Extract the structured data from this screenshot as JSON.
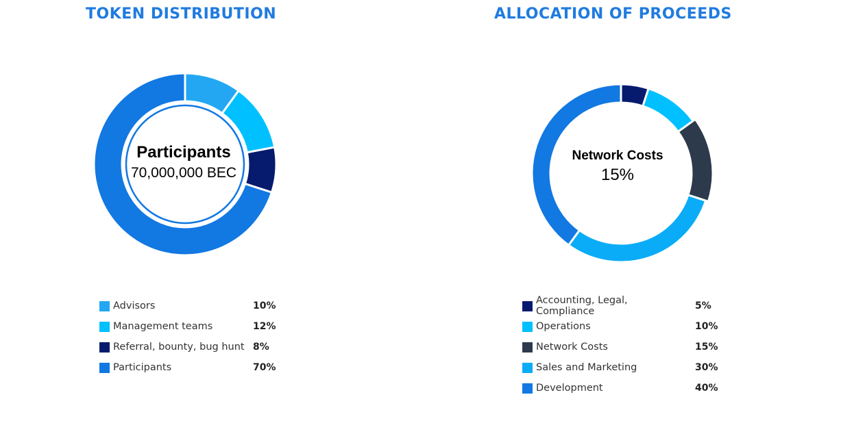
{
  "chart_data": [
    {
      "type": "pie",
      "title": "TOKEN DISTRIBUTION",
      "categories": [
        "Advisors",
        "Management teams",
        "Referral, bounty, bug hunt",
        "Participants"
      ],
      "values": [
        10,
        12,
        8,
        70
      ],
      "value_labels": [
        "10%",
        "12%",
        "8%",
        "70%"
      ],
      "colors": [
        "#23a7f2",
        "#00c0ff",
        "#061b6e",
        "#1278e2"
      ],
      "highlighted": "Participants",
      "center_title": "Participants",
      "center_value": "70,000,000 BEC",
      "legend": "bottom"
    },
    {
      "type": "pie",
      "title": "ALLOCATION OF PROCEEDS",
      "categories": [
        "Accounting, Legal, Compliance",
        "Operations",
        "Network Costs",
        "Sales and Marketing",
        "Development"
      ],
      "values": [
        5,
        10,
        15,
        30,
        40
      ],
      "value_labels": [
        "5%",
        "10%",
        "15%",
        "30%",
        "40%"
      ],
      "colors": [
        "#061b6e",
        "#00c0ff",
        "#2d3a4c",
        "#0aacf7",
        "#1278e2"
      ],
      "highlighted": "Network Costs",
      "center_title": "Network Costs",
      "center_value": "15%",
      "legend": "bottom"
    }
  ]
}
